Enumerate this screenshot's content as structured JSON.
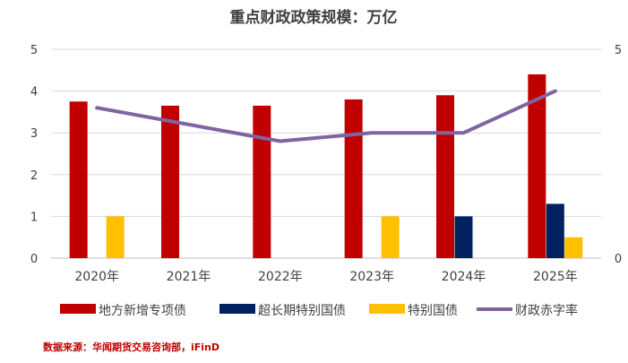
{
  "chart_data": {
    "type": "bar",
    "title": "重点财政政策规模：万亿",
    "categories": [
      "2020年",
      "2021年",
      "2022年",
      "2023年",
      "2024年",
      "2025年"
    ],
    "series": [
      {
        "name": "地方新增专项债",
        "kind": "bar",
        "color": "#c00000",
        "values": [
          3.75,
          3.65,
          3.65,
          3.8,
          3.9,
          4.4
        ]
      },
      {
        "name": "超长期特别国债",
        "kind": "bar",
        "color": "#002060",
        "values": [
          0,
          0,
          0,
          0,
          1.0,
          1.3
        ]
      },
      {
        "name": "特别国债",
        "kind": "bar",
        "color": "#ffc000",
        "values": [
          1.0,
          0,
          0,
          1.0,
          0,
          0.5
        ]
      },
      {
        "name": "财政赤字率",
        "kind": "line",
        "axis": "right",
        "color": "#8064a2",
        "values": [
          3.6,
          3.2,
          2.8,
          3.0,
          3.0,
          4.0
        ]
      }
    ],
    "y_left": {
      "min": 0,
      "max": 5,
      "ticks": [
        "0",
        "1",
        "2",
        "3",
        "4",
        "5"
      ]
    },
    "y_right": {
      "min": 0,
      "max": 5,
      "ticks": [
        "0",
        "5"
      ]
    },
    "grid": true,
    "legend_position": "bottom"
  },
  "source": "数据来源：华闻期货交易咨询部，iFinD"
}
